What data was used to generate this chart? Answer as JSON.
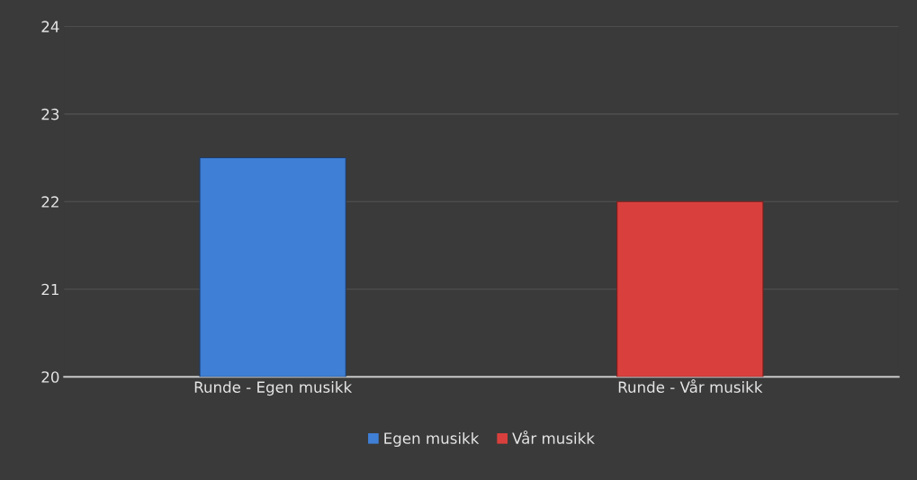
{
  "chart_data": {
    "type": "bar",
    "stacked": true,
    "categories": [
      "Runde - Egen musikk",
      "Runde - Vår musikk"
    ],
    "series": [
      {
        "name": "Egen musikk",
        "color": "#3f7fd6",
        "values": [
          22.5,
          null
        ]
      },
      {
        "name": "Vår musikk",
        "color": "#d9403d",
        "values": [
          null,
          22.0
        ]
      }
    ],
    "ylim": [
      20,
      24
    ],
    "yticks": [
      20,
      21,
      22,
      23,
      24
    ],
    "grid": "y",
    "legend": "bottom"
  }
}
